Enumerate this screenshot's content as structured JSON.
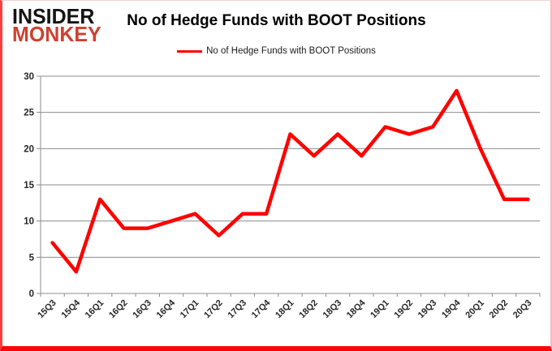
{
  "logo": {
    "line1": "INSIDER",
    "line2": "MONKEY",
    "line1_color": "#141414",
    "line2_color": "#cd4130"
  },
  "header": {
    "title": "No of Hedge Funds with BOOT Positions"
  },
  "legend": {
    "label": "No of Hedge Funds with BOOT Positions",
    "marker_color": "#ff0000"
  },
  "chart_data": {
    "type": "line",
    "title": "No of Hedge Funds with BOOT Positions",
    "categories": [
      "15Q3",
      "15Q4",
      "16Q1",
      "16Q2",
      "16Q3",
      "16Q4",
      "17Q1",
      "17Q2",
      "17Q3",
      "17Q4",
      "18Q1",
      "18Q2",
      "18Q3",
      "18Q4",
      "19Q1",
      "19Q2",
      "19Q3",
      "19Q4",
      "20Q1",
      "20Q2",
      "20Q3"
    ],
    "series": [
      {
        "name": "No of Hedge Funds with BOOT Positions",
        "color": "#ff0000",
        "values": [
          7,
          3,
          13,
          9,
          9,
          10,
          11,
          8,
          11,
          11,
          22,
          19,
          22,
          19,
          23,
          22,
          23,
          28,
          20,
          13,
          13
        ]
      }
    ],
    "xlabel": "",
    "ylabel": "",
    "ylim": [
      0,
      30
    ],
    "yticks": [
      0,
      5,
      10,
      15,
      20,
      25,
      30
    ],
    "grid": true,
    "legend_position": "top-center",
    "gridline_color": "#8c8c8c",
    "axis_color": "#8c8c8c",
    "tick_label_color": "#262626",
    "line_width": 4.5
  }
}
